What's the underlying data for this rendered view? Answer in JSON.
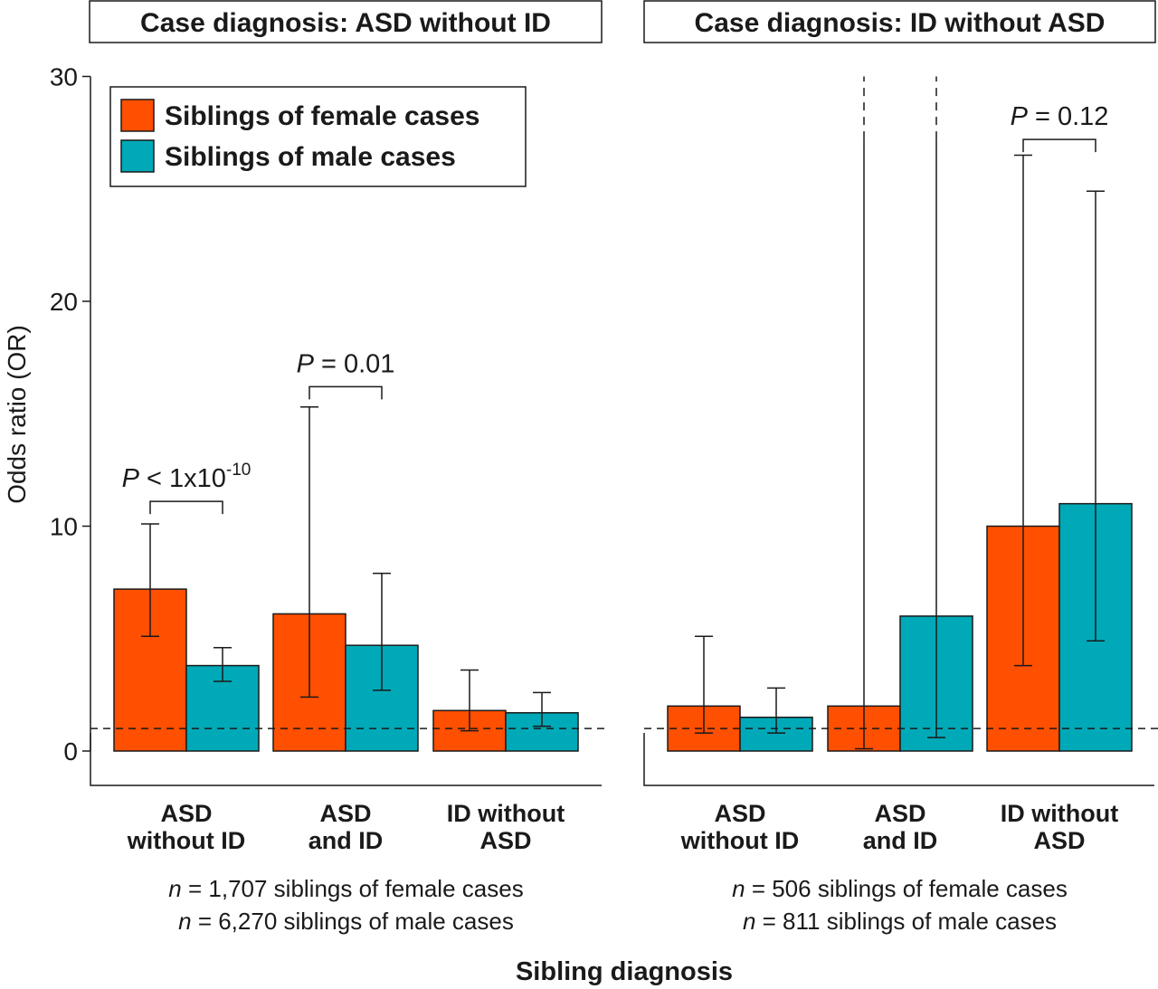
{
  "chart_data": {
    "type": "bar",
    "ylabel": "Odds ratio (OR)",
    "xlabel": "Sibling diagnosis",
    "ylim": [
      0,
      30
    ],
    "yticks": [
      "0",
      "10",
      "20",
      "30"
    ],
    "reference_line": 1,
    "categories": [
      "ASD without ID",
      "ASD and ID",
      "ID without ASD"
    ],
    "category_lines": [
      [
        "ASD",
        "without ID"
      ],
      [
        "ASD",
        "and ID"
      ],
      [
        "ID without",
        "ASD"
      ]
    ],
    "legend": {
      "position": "top-left",
      "entries": [
        {
          "name": "Siblings of female cases",
          "color": "#ff4f00"
        },
        {
          "name": "Siblings of male cases",
          "color": "#00a9b8"
        }
      ]
    },
    "panels": [
      {
        "title": "Case diagnosis: ASD without ID",
        "series": [
          {
            "name": "Siblings of female cases",
            "values": [
              7.2,
              6.1,
              1.8
            ],
            "ci_low": [
              5.1,
              2.4,
              0.9
            ],
            "ci_high": [
              10.1,
              15.3,
              3.6
            ],
            "ci_truncated": [
              false,
              false,
              false
            ]
          },
          {
            "name": "Siblings of male cases",
            "values": [
              3.8,
              4.7,
              1.7
            ],
            "ci_low": [
              3.1,
              2.7,
              1.1
            ],
            "ci_high": [
              4.6,
              7.9,
              2.6
            ],
            "ci_truncated": [
              false,
              false,
              false
            ]
          }
        ],
        "comparisons": [
          {
            "category": 0,
            "height": 11.1,
            "text_italic": "P",
            "text": " < 1x10",
            "superscript": "-10"
          },
          {
            "category": 1,
            "height": 16.2,
            "text_italic": "P",
            "text": " = 0.01",
            "superscript": ""
          }
        ],
        "n_lines": [
          {
            "italic": "n",
            "text": " = 1,707 siblings of female cases"
          },
          {
            "italic": "n",
            "text": " = 6,270 siblings of male cases"
          }
        ]
      },
      {
        "title": "Case diagnosis: ID without ASD",
        "series": [
          {
            "name": "Siblings of female cases",
            "values": [
              2.0,
              2.0,
              10.0
            ],
            "ci_low": [
              0.8,
              0.1,
              3.8
            ],
            "ci_high": [
              5.1,
              30,
              26.5
            ],
            "ci_truncated": [
              false,
              true,
              false
            ]
          },
          {
            "name": "Siblings of male cases",
            "values": [
              1.5,
              6.0,
              11.0
            ],
            "ci_low": [
              0.8,
              0.6,
              4.9
            ],
            "ci_high": [
              2.8,
              30,
              24.9
            ],
            "ci_truncated": [
              false,
              true,
              false
            ]
          }
        ],
        "comparisons": [
          {
            "category": 2,
            "height": 27.2,
            "text_italic": "P",
            "text": " = 0.12",
            "superscript": ""
          }
        ],
        "n_lines": [
          {
            "italic": "n",
            "text": " = 506 siblings of female cases"
          },
          {
            "italic": "n",
            "text": " = 811 siblings of male cases"
          }
        ]
      }
    ]
  }
}
